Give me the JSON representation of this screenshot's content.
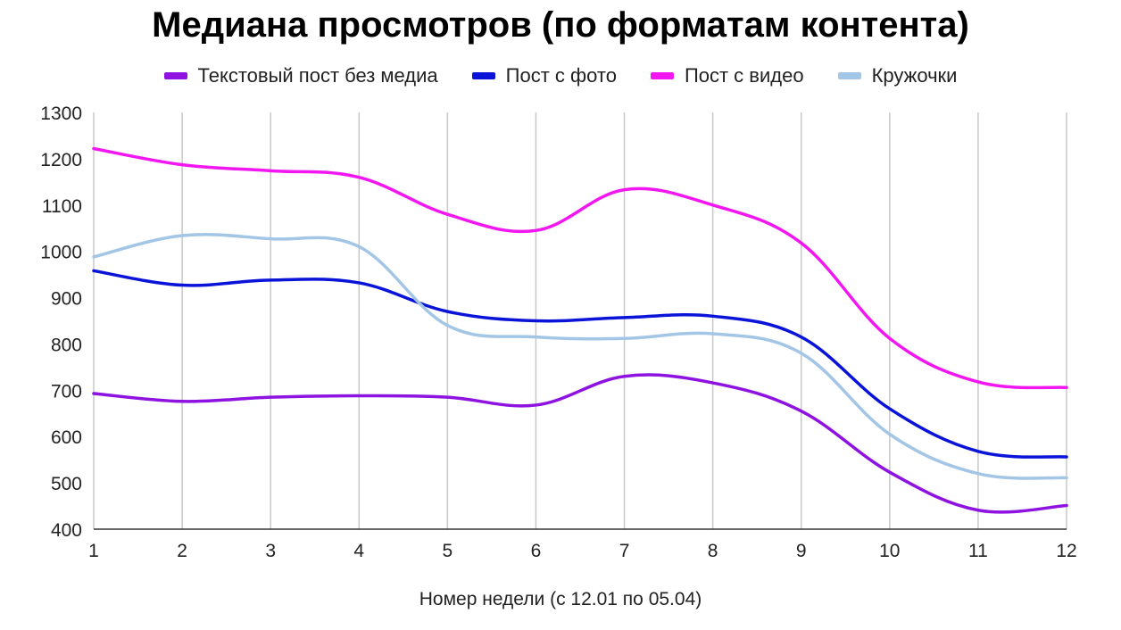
{
  "chart_data": {
    "type": "line",
    "title": "Медиана просмотров (по форматам контента)",
    "xlabel": "Номер недели (с 12.01 по 05.04)",
    "ylabel": "",
    "categories": [
      "1",
      "2",
      "3",
      "4",
      "5",
      "6",
      "7",
      "8",
      "9",
      "10",
      "11",
      "12"
    ],
    "y_ticks": [
      "400",
      "500",
      "600",
      "700",
      "800",
      "900",
      "1000",
      "1100",
      "1200",
      "1300"
    ],
    "ylim": [
      400,
      1300
    ],
    "grid": "vertical",
    "legend_position": "top",
    "series": [
      {
        "name": "Текстовый пост без медиа",
        "color": "#8e12e0",
        "values": [
          693,
          676,
          685,
          688,
          685,
          668,
          730,
          716,
          655,
          523,
          441,
          451
        ]
      },
      {
        "name": "Пост с фото",
        "color": "#0a14d9",
        "values": [
          958,
          927,
          938,
          932,
          870,
          850,
          857,
          860,
          815,
          660,
          568,
          556
        ]
      },
      {
        "name": "Пост с видео",
        "color": "#f217f0",
        "values": [
          1222,
          1187,
          1174,
          1160,
          1080,
          1045,
          1133,
          1100,
          1018,
          812,
          718,
          706
        ]
      },
      {
        "name": "Кружочки",
        "color": "#a3c6e6",
        "values": [
          988,
          1034,
          1027,
          1010,
          840,
          815,
          812,
          822,
          780,
          605,
          520,
          511
        ]
      }
    ]
  }
}
